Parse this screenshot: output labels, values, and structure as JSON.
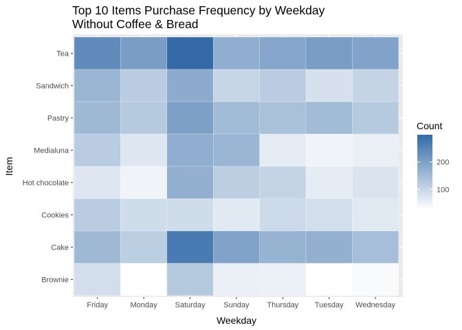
{
  "chart_data": {
    "type": "heatmap",
    "title_line1": "Top 10 Items Purchase Frequency by Weekday",
    "title_line2": "Without Coffee & Bread",
    "xlabel": "Weekday",
    "ylabel": "Item",
    "x": [
      "Friday",
      "Monday",
      "Saturday",
      "Sunday",
      "Thursday",
      "Tuesday",
      "Wednesday"
    ],
    "y": [
      "Tea",
      "Sandwich",
      "Pastry",
      "Medialuna",
      "Hot chocolate",
      "Cookies",
      "Cake",
      "Brownie"
    ],
    "values": [
      [
        240,
        205,
        300,
        175,
        190,
        205,
        195
      ],
      [
        160,
        120,
        180,
        100,
        120,
        80,
        105
      ],
      [
        155,
        125,
        200,
        150,
        140,
        150,
        125
      ],
      [
        120,
        70,
        175,
        160,
        60,
        45,
        55
      ],
      [
        70,
        45,
        170,
        115,
        105,
        60,
        75
      ],
      [
        120,
        90,
        90,
        65,
        95,
        85,
        65
      ],
      [
        155,
        115,
        270,
        195,
        165,
        170,
        145
      ],
      [
        85,
        25,
        125,
        55,
        50,
        25,
        35
      ]
    ],
    "legend": {
      "title": "Count",
      "ticks": [
        100,
        200
      ],
      "range": [
        25,
        300
      ],
      "low_color": "#ffffff",
      "high_color": "#336aa7"
    },
    "colors": {
      "panel_background": "#ebebeb",
      "grid": "#ffffff"
    }
  }
}
